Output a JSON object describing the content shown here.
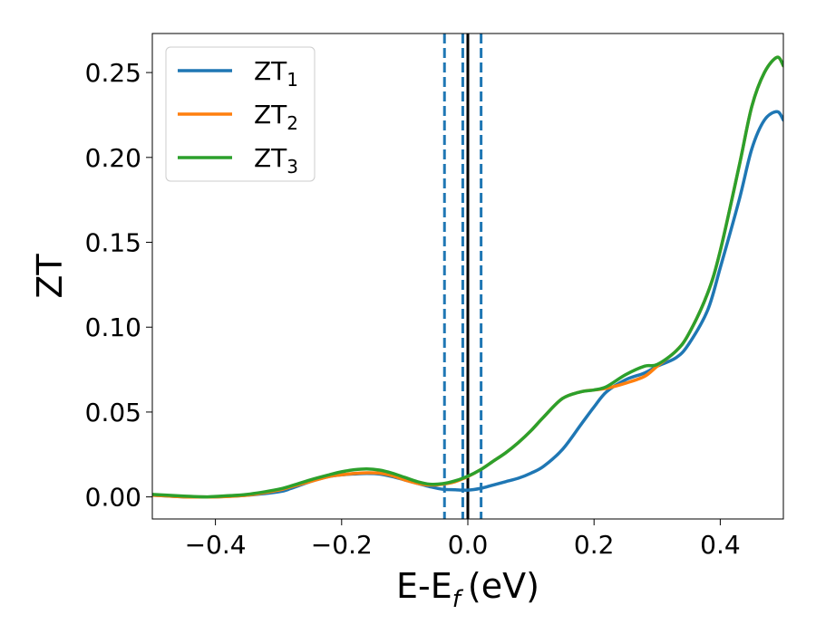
{
  "chart_data": {
    "type": "line",
    "xlabel": "E-E",
    "xlabel_sub": "f",
    "xlabel_unit": "(eV)",
    "ylabel": "ZT",
    "xlim": [
      -0.5,
      0.5
    ],
    "ylim": [
      -0.013,
      0.273
    ],
    "xticks": [
      -0.4,
      -0.2,
      0.0,
      0.2,
      0.4
    ],
    "xtick_labels": [
      "−0.4",
      "−0.2",
      "0.0",
      "0.2",
      "0.4"
    ],
    "yticks": [
      0.0,
      0.05,
      0.1,
      0.15,
      0.2,
      0.25
    ],
    "ytick_labels": [
      "0.00",
      "0.05",
      "0.10",
      "0.15",
      "0.20",
      "0.25"
    ],
    "grid": false,
    "legend_position": "top-left",
    "series": [
      {
        "name": "ZT",
        "subscript": "1",
        "color": "#1f77b4",
        "x": [
          -0.5,
          -0.45,
          -0.42,
          -0.4,
          -0.35,
          -0.3,
          -0.28,
          -0.25,
          -0.22,
          -0.2,
          -0.18,
          -0.16,
          -0.14,
          -0.12,
          -0.1,
          -0.08,
          -0.06,
          -0.04,
          -0.02,
          0.0,
          0.02,
          0.04,
          0.06,
          0.08,
          0.1,
          0.12,
          0.15,
          0.18,
          0.2,
          0.22,
          0.25,
          0.28,
          0.3,
          0.33,
          0.35,
          0.38,
          0.4,
          0.43,
          0.45,
          0.47,
          0.49,
          0.5
        ],
        "y": [
          0.001,
          0.0,
          0.0,
          0.0,
          0.001,
          0.003,
          0.005,
          0.009,
          0.012,
          0.013,
          0.0135,
          0.0138,
          0.0135,
          0.012,
          0.01,
          0.008,
          0.006,
          0.0045,
          0.0042,
          0.004,
          0.005,
          0.007,
          0.009,
          0.011,
          0.014,
          0.018,
          0.028,
          0.043,
          0.053,
          0.062,
          0.069,
          0.073,
          0.077,
          0.082,
          0.09,
          0.11,
          0.135,
          0.175,
          0.205,
          0.222,
          0.227,
          0.222
        ]
      },
      {
        "name": "ZT",
        "subscript": "2",
        "color": "#ff7f0e",
        "x": [
          -0.5,
          -0.45,
          -0.42,
          -0.4,
          -0.35,
          -0.3,
          -0.28,
          -0.25,
          -0.22,
          -0.2,
          -0.18,
          -0.16,
          -0.14,
          -0.12,
          -0.1,
          -0.08,
          -0.06,
          -0.04,
          -0.02,
          0.0,
          0.02,
          0.04,
          0.06,
          0.08,
          0.1,
          0.12,
          0.15,
          0.18,
          0.2,
          0.22,
          0.25,
          0.28,
          0.3,
          0.33,
          0.35,
          0.38,
          0.4,
          0.43,
          0.45,
          0.47,
          0.49,
          0.5
        ],
        "y": [
          0.001,
          0.0,
          0.0,
          0.0,
          0.001,
          0.004,
          0.006,
          0.009,
          0.012,
          0.013,
          0.0138,
          0.0142,
          0.014,
          0.0125,
          0.01,
          0.008,
          0.007,
          0.0075,
          0.009,
          0.012,
          0.016,
          0.021,
          0.026,
          0.032,
          0.039,
          0.047,
          0.058,
          0.062,
          0.063,
          0.064,
          0.067,
          0.071,
          0.077,
          0.086,
          0.096,
          0.12,
          0.145,
          0.195,
          0.23,
          0.25,
          0.259,
          0.254
        ]
      },
      {
        "name": "ZT",
        "subscript": "3",
        "color": "#2ca02c",
        "x": [
          -0.5,
          -0.45,
          -0.42,
          -0.4,
          -0.35,
          -0.3,
          -0.28,
          -0.25,
          -0.22,
          -0.2,
          -0.18,
          -0.16,
          -0.14,
          -0.12,
          -0.1,
          -0.08,
          -0.06,
          -0.04,
          -0.02,
          0.0,
          0.02,
          0.04,
          0.06,
          0.08,
          0.1,
          0.12,
          0.15,
          0.18,
          0.2,
          0.22,
          0.25,
          0.28,
          0.3,
          0.33,
          0.35,
          0.38,
          0.4,
          0.43,
          0.45,
          0.47,
          0.49,
          0.5
        ],
        "y": [
          0.0015,
          0.0005,
          0.0,
          0.0003,
          0.0015,
          0.0045,
          0.0065,
          0.01,
          0.013,
          0.0148,
          0.016,
          0.0165,
          0.0158,
          0.014,
          0.0115,
          0.009,
          0.0075,
          0.0078,
          0.0095,
          0.0122,
          0.016,
          0.021,
          0.026,
          0.032,
          0.039,
          0.047,
          0.058,
          0.062,
          0.063,
          0.065,
          0.072,
          0.077,
          0.078,
          0.086,
          0.096,
          0.12,
          0.145,
          0.195,
          0.23,
          0.25,
          0.259,
          0.254
        ]
      }
    ],
    "vlines": [
      {
        "x": 0.0,
        "style": "solid",
        "color": "#000000"
      },
      {
        "x": -0.037,
        "style": "dashed",
        "color": "#1f77b4"
      },
      {
        "x": -0.008,
        "style": "dashed",
        "color": "#1f77b4"
      },
      {
        "x": 0.021,
        "style": "dashed",
        "color": "#1f77b4"
      }
    ]
  }
}
